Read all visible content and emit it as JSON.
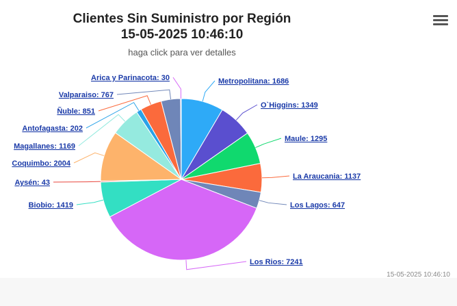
{
  "header": {
    "title_line1": "Clientes Sin Suministro por Región",
    "title_line2": "15-05-2025 10:46:10",
    "subtitle": "haga click para ver detalles"
  },
  "menu": {
    "icon": "hamburger-menu-icon"
  },
  "footer": {
    "timestamp": "15-05-2025 10:46:10"
  },
  "chart_data": {
    "type": "pie",
    "title": "Clientes Sin Suministro por Región",
    "subtitle": "haga click para ver detalles",
    "slices": [
      {
        "label": "Metropolitana",
        "value": 1686,
        "color": "#2eaaf7"
      },
      {
        "label": "O`Higgins",
        "value": 1349,
        "color": "#5a4fcf"
      },
      {
        "label": "Maule",
        "value": 1295,
        "color": "#10d96e"
      },
      {
        "label": "La Araucania",
        "value": 1137,
        "color": "#fb6a3c"
      },
      {
        "label": "Los Lagos",
        "value": 647,
        "color": "#6f86b8"
      },
      {
        "label": "Los Rios",
        "value": 7241,
        "color": "#d667f7"
      },
      {
        "label": "Biobio",
        "value": 1419,
        "color": "#33dfc3"
      },
      {
        "label": "Aysén",
        "value": 43,
        "color": "#e8463c"
      },
      {
        "label": "Coquimbo",
        "value": 2004,
        "color": "#fdb36b"
      },
      {
        "label": "Magallanes",
        "value": 1169,
        "color": "#95eadf"
      },
      {
        "label": "Antofagasta",
        "value": 202,
        "color": "#2aa3e8"
      },
      {
        "label": "Ñuble",
        "value": 851,
        "color": "#fb6a3c"
      },
      {
        "label": "Valparaiso",
        "value": 767,
        "color": "#6f86b8"
      },
      {
        "label": "Arica y Parinacota",
        "value": 30,
        "color": "#d667f7"
      }
    ]
  }
}
